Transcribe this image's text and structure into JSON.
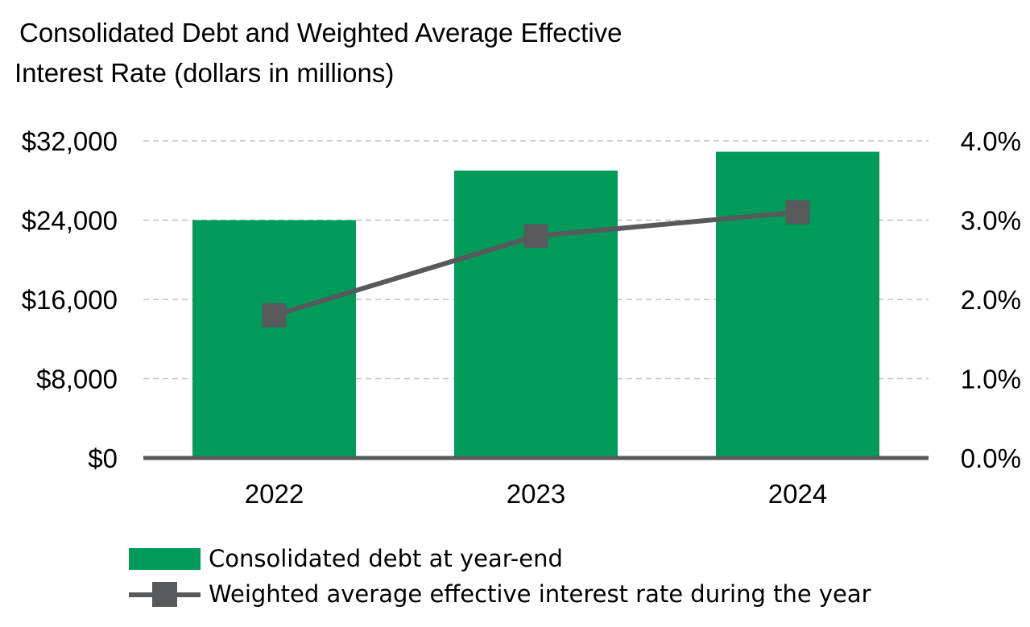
{
  "title_lines": [
    "Consolidated Debt and Weighted Average Effective",
    "Interest Rate (dollars in millions)"
  ],
  "colors": {
    "bar": "#009B5B",
    "line": "#58595B",
    "grid": "#BFBFBF",
    "axis": "#58595B"
  },
  "chart_data": {
    "type": "bar",
    "title": "Consolidated Debt and Weighted Average Effective Interest Rate (dollars in millions)",
    "categories": [
      "2022",
      "2023",
      "2024"
    ],
    "series": [
      {
        "name": "Consolidated debt at year-end",
        "type": "bar",
        "axis": "left",
        "values": [
          24000,
          29000,
          30900
        ]
      },
      {
        "name": "Weighted average effective interest rate during the year",
        "type": "line",
        "axis": "right",
        "marker": "square",
        "values": [
          1.8,
          2.8,
          3.1
        ]
      }
    ],
    "y_left": {
      "range": [
        0,
        32000
      ],
      "ticks": [
        0,
        8000,
        16000,
        24000,
        32000
      ],
      "tick_labels": [
        "$0",
        "$8,000",
        "$16,000",
        "$24,000",
        "$32,000"
      ]
    },
    "y_right": {
      "range": [
        0,
        4.0
      ],
      "ticks": [
        0,
        1,
        2,
        3,
        4
      ],
      "tick_labels": [
        "0.0%",
        "1.0%",
        "2.0%",
        "3.0%",
        "4.0%"
      ]
    },
    "grid": "horizontal dashed",
    "legend_position": "bottom"
  }
}
